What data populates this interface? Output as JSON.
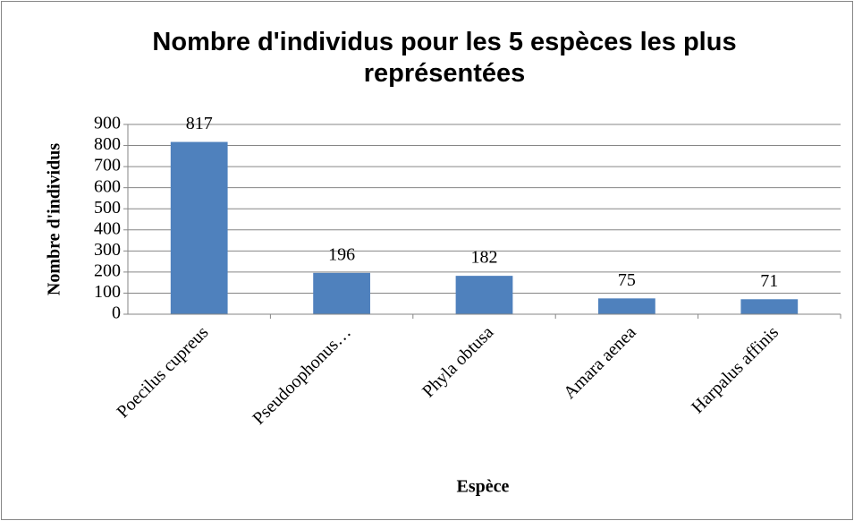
{
  "chart_data": {
    "type": "bar",
    "title": "Nombre d'individus pour les 5 espèces les plus représentées",
    "xlabel": "Espèce",
    "ylabel": "Nombre d'individus",
    "categories": [
      "Poecilus cupreus",
      "Pseudoophonus…",
      "Phyla obtusa",
      "Amara aenea",
      "Harpalus affinis"
    ],
    "values": [
      817,
      196,
      182,
      75,
      71
    ],
    "color": "#4f81bd",
    "ylim": [
      0,
      900
    ],
    "yticks": [
      0,
      100,
      200,
      300,
      400,
      500,
      600,
      700,
      800,
      900
    ],
    "grid": true
  }
}
